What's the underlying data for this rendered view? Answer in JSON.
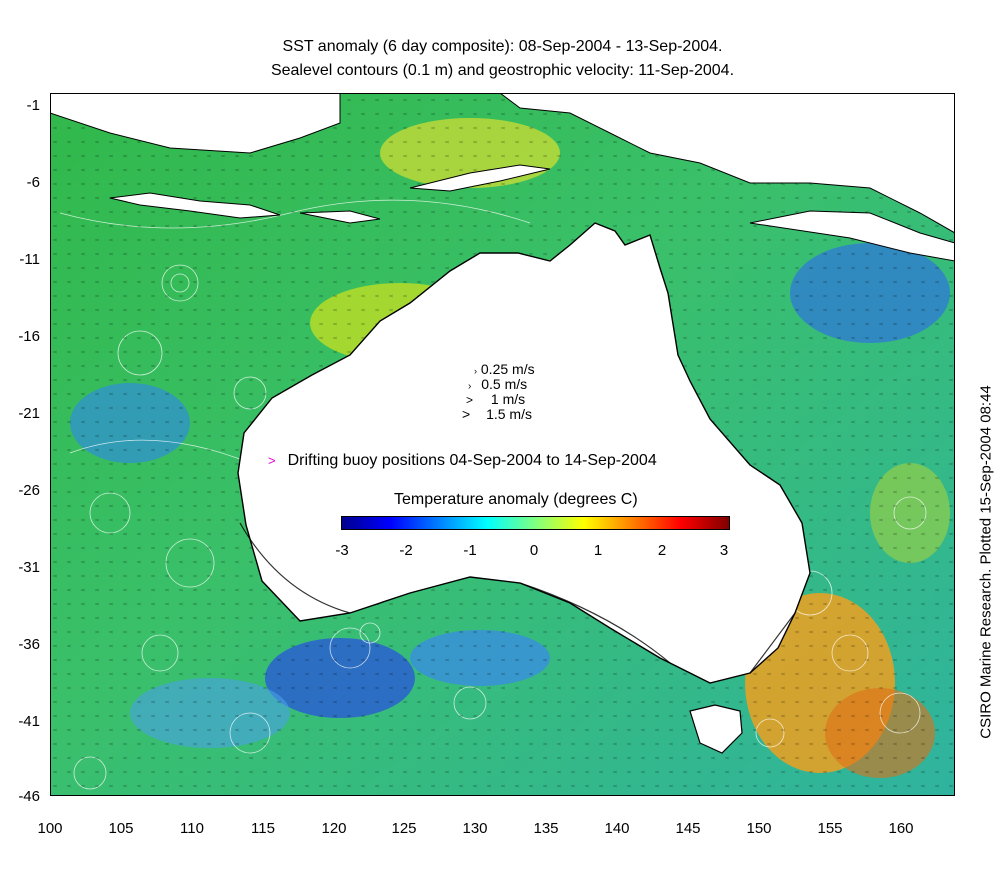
{
  "title_line1": "SST anomaly (6 day composite): 08-Sep-2004 - 13-Sep-2004.",
  "title_line2": "Sealevel contours (0.1 m) and geostrophic velocity: 11-Sep-2004.",
  "side_credit": "CSIRO Marine Research. Plotted 15-Sep-2004 08:44",
  "y_ticks": [
    "-1",
    "-6",
    "-11",
    "-16",
    "-21",
    "-26",
    "-31",
    "-36",
    "-41",
    "-46"
  ],
  "x_ticks": [
    "100",
    "105",
    "110",
    "115",
    "120",
    "125",
    "130",
    "135",
    "140",
    "145",
    "150",
    "155",
    "160"
  ],
  "velocity_legend": [
    "0.25 m/s",
    "0.5 m/s",
    "1 m/s",
    "1.5 m/s"
  ],
  "buoy_legend": "Drifting buoy positions 04-Sep-2004 to 14-Sep-2004",
  "buoy_marker_color": "#e000e0",
  "colorbar": {
    "title": "Temperature anomaly (degrees C)",
    "ticks": [
      "-3",
      "-2",
      "-1",
      "0",
      "1",
      "2",
      "3"
    ],
    "range": [
      -3,
      3
    ],
    "colormap": "jet"
  },
  "map_extent": {
    "lon": [
      100,
      164
    ],
    "lat": [
      -46,
      0
    ]
  },
  "colors": {
    "land": "#ffffff",
    "ocean_base": "#3fbf4f",
    "coast": "#000000",
    "contour": "#ffffff"
  }
}
